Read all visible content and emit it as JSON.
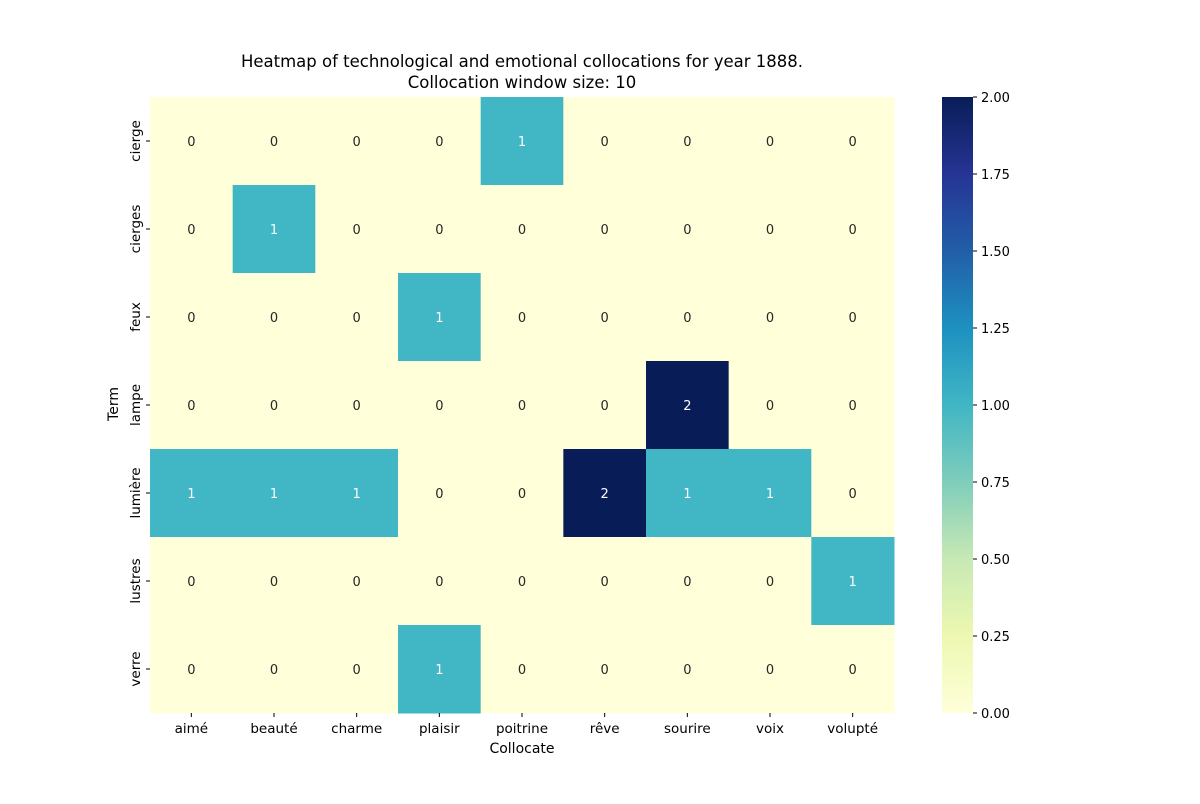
{
  "chart_data": {
    "type": "heatmap",
    "title": "Heatmap of technological and emotional collocations for year 1888.",
    "subtitle": "Collocation window size: 10",
    "xlabel": "Collocate",
    "ylabel": "Term",
    "x": [
      "aimé",
      "beauté",
      "charme",
      "plaisir",
      "poitrine",
      "rêve",
      "sourire",
      "voix",
      "volupté"
    ],
    "y": [
      "cierge",
      "cierges",
      "feux",
      "lampe",
      "lumière",
      "lustres",
      "verre"
    ],
    "values": [
      [
        0,
        0,
        0,
        0,
        1,
        0,
        0,
        0,
        0
      ],
      [
        0,
        1,
        0,
        0,
        0,
        0,
        0,
        0,
        0
      ],
      [
        0,
        0,
        0,
        1,
        0,
        0,
        0,
        0,
        0
      ],
      [
        0,
        0,
        0,
        0,
        0,
        0,
        2,
        0,
        0
      ],
      [
        1,
        1,
        1,
        0,
        0,
        2,
        1,
        1,
        0
      ],
      [
        0,
        0,
        0,
        0,
        0,
        0,
        0,
        0,
        1
      ],
      [
        0,
        0,
        0,
        1,
        0,
        0,
        0,
        0,
        0
      ]
    ],
    "colormap": "YlGnBu",
    "colorbar": {
      "range": [
        0,
        2
      ],
      "ticks": [
        "0.00",
        "0.25",
        "0.50",
        "0.75",
        "1.00",
        "1.25",
        "1.50",
        "1.75",
        "2.00"
      ]
    },
    "annotations": true,
    "grid": false,
    "legend": "colorbar-right"
  }
}
